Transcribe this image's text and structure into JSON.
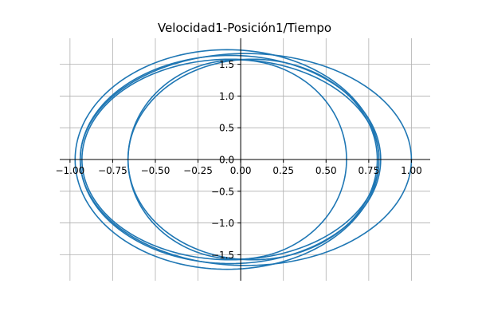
{
  "chart_data": {
    "type": "line",
    "title": "Velocidad1-Posición1/Tiempo",
    "xlabel": "",
    "ylabel": "",
    "xlim": [
      -1.06,
      1.11
    ],
    "ylim": [
      -1.91,
      1.91
    ],
    "grid": true,
    "axes_through_origin": true,
    "x_ticks": [
      -1.0,
      -0.75,
      -0.5,
      -0.25,
      0.0,
      0.25,
      0.5,
      0.75,
      1.0
    ],
    "x_tick_labels": [
      "−1.00",
      "−0.75",
      "−0.50",
      "−0.25",
      "0.00",
      "0.25",
      "0.50",
      "0.75",
      "1.00"
    ],
    "y_ticks": [
      -1.5,
      -1.0,
      -0.5,
      0.0,
      0.5,
      1.0,
      1.5
    ],
    "y_tick_labels": [
      "−1.5",
      "−1.0",
      "−0.5",
      "0.0",
      "0.5",
      "1.0",
      "1.5"
    ],
    "series": [
      {
        "color": "#1f77b4",
        "description_loops": [
          {
            "x_center": -0.08,
            "y_center": 0.0,
            "x_radius": 0.89,
            "y_radius": 1.73
          },
          {
            "x_center": 0.03,
            "y_center": 0.0,
            "x_radius": 0.97,
            "y_radius": 1.67
          },
          {
            "x_center": -0.06,
            "y_center": 0.0,
            "x_radius": 0.87,
            "y_radius": 1.58
          },
          {
            "x_center": 0.07,
            "y_center": 0.0,
            "x_radius": 0.73,
            "y_radius": 1.58
          },
          {
            "x_center": -0.02,
            "y_center": 0.0,
            "x_radius": 0.64,
            "y_radius": 1.57
          },
          {
            "x_center": -0.06,
            "y_center": 0.0,
            "x_radius": 0.88,
            "y_radius": 1.64
          }
        ]
      }
    ]
  }
}
